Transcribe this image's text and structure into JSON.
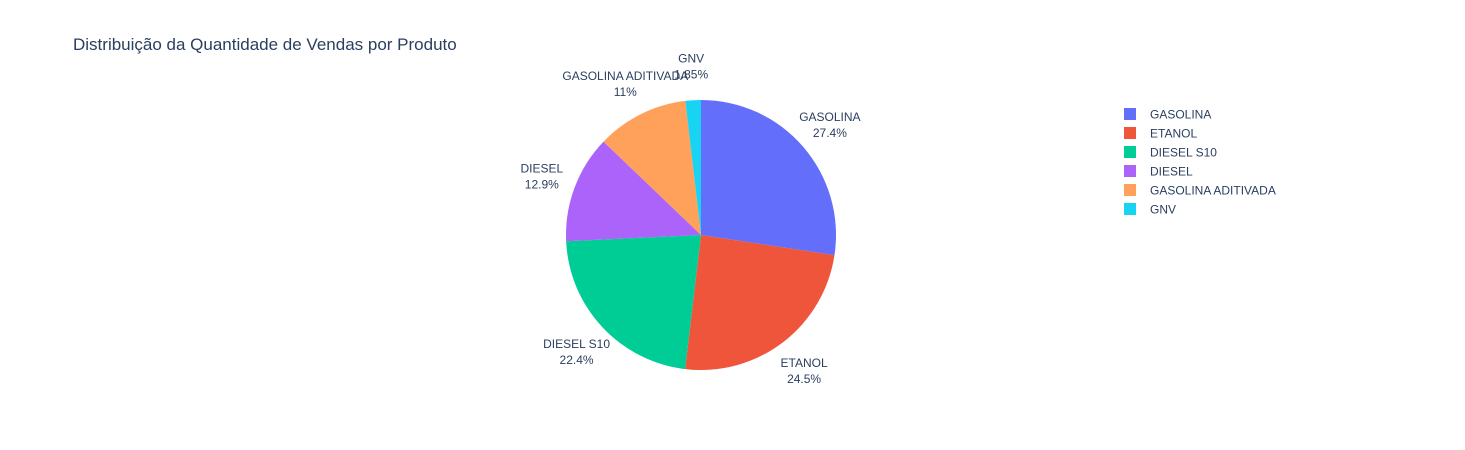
{
  "chart_data": {
    "type": "pie",
    "title": "Distribuição da Quantidade de Vendas por Produto",
    "legend_position": "right",
    "slices": [
      {
        "label": "GASOLINA",
        "value": 27.4,
        "percent_text": "27.4%",
        "color": "#636efa"
      },
      {
        "label": "ETANOL",
        "value": 24.5,
        "percent_text": "24.5%",
        "color": "#ef553b"
      },
      {
        "label": "DIESEL S10",
        "value": 22.4,
        "percent_text": "22.4%",
        "color": "#00cc96"
      },
      {
        "label": "DIESEL",
        "value": 12.9,
        "percent_text": "12.9%",
        "color": "#ab63fa"
      },
      {
        "label": "GASOLINA ADITIVADA",
        "value": 11,
        "percent_text": "11%",
        "color": "#ffa15a"
      },
      {
        "label": "GNV",
        "value": 1.85,
        "percent_text": "1.85%",
        "color": "#19d3f3"
      }
    ]
  }
}
